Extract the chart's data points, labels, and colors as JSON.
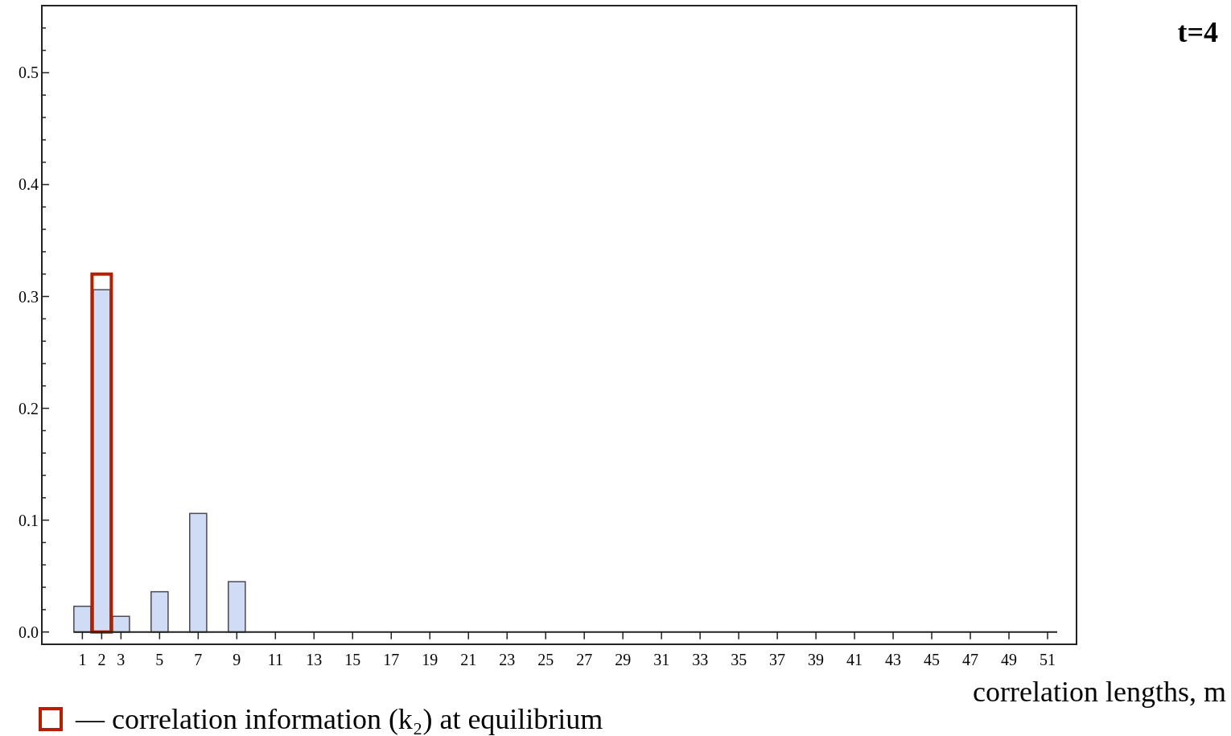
{
  "chart_data": {
    "type": "bar",
    "xlabel": "correlation lengths, m",
    "annotations": [
      "t=4"
    ],
    "xlim": [
      -1.1,
      52.5
    ],
    "ylim": [
      -0.011,
      0.56
    ],
    "xticks": [
      1,
      2,
      3,
      5,
      7,
      9,
      11,
      13,
      15,
      17,
      19,
      21,
      23,
      25,
      27,
      29,
      31,
      33,
      35,
      37,
      39,
      41,
      43,
      45,
      47,
      49,
      51
    ],
    "yticks": [
      {
        "value": 0,
        "label": "0.0"
      },
      {
        "value": 0.02,
        "label": null
      },
      {
        "value": 0.04,
        "label": null
      },
      {
        "value": 0.06,
        "label": null
      },
      {
        "value": 0.08,
        "label": null
      },
      0.1,
      {
        "value": 0.12,
        "label": null
      },
      {
        "value": 0.14,
        "label": null
      },
      {
        "value": 0.16,
        "label": null
      },
      {
        "value": 0.18,
        "label": null
      },
      0.2,
      {
        "value": 0.22,
        "label": null
      },
      {
        "value": 0.24,
        "label": null
      },
      {
        "value": 0.26,
        "label": null
      },
      {
        "value": 0.28,
        "label": null
      },
      0.3,
      {
        "value": 0.32,
        "label": null
      },
      {
        "value": 0.34,
        "label": null
      },
      {
        "value": 0.36,
        "label": null
      },
      {
        "value": 0.38,
        "label": null
      },
      0.4,
      {
        "value": 0.42,
        "label": null
      },
      {
        "value": 0.44,
        "label": null
      },
      {
        "value": 0.46,
        "label": null
      },
      {
        "value": 0.48,
        "label": null
      },
      0.5,
      {
        "value": 0.52,
        "label": null
      },
      {
        "value": 0.54,
        "label": null
      }
    ],
    "series": [
      {
        "color": "#d0dbf5",
        "x": [
          1,
          2,
          3,
          5,
          7,
          9
        ],
        "values": [
          0.023,
          0.306,
          0.014,
          0.036,
          0.106,
          0.045
        ]
      },
      {
        "name": "— correlation information (k₂) at equilibrium",
        "color": "#b22000",
        "x": [
          2
        ],
        "values": [
          0.32
        ]
      }
    ],
    "legend": "bottom left"
  }
}
